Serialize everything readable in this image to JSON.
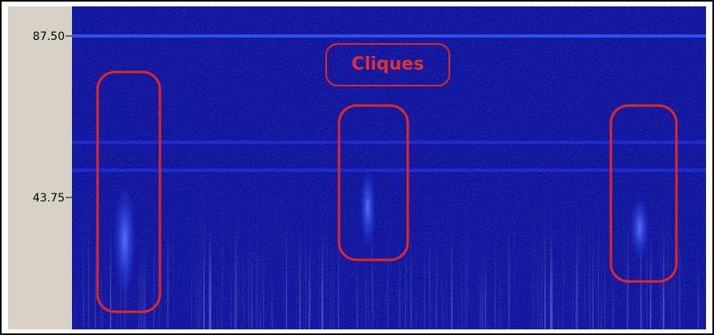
{
  "axis": {
    "ticks": [
      {
        "value": 87.5,
        "label": "87.50"
      },
      {
        "value": 43.75,
        "label": "43.75"
      }
    ]
  },
  "annotation": {
    "label": "Cliques"
  }
}
